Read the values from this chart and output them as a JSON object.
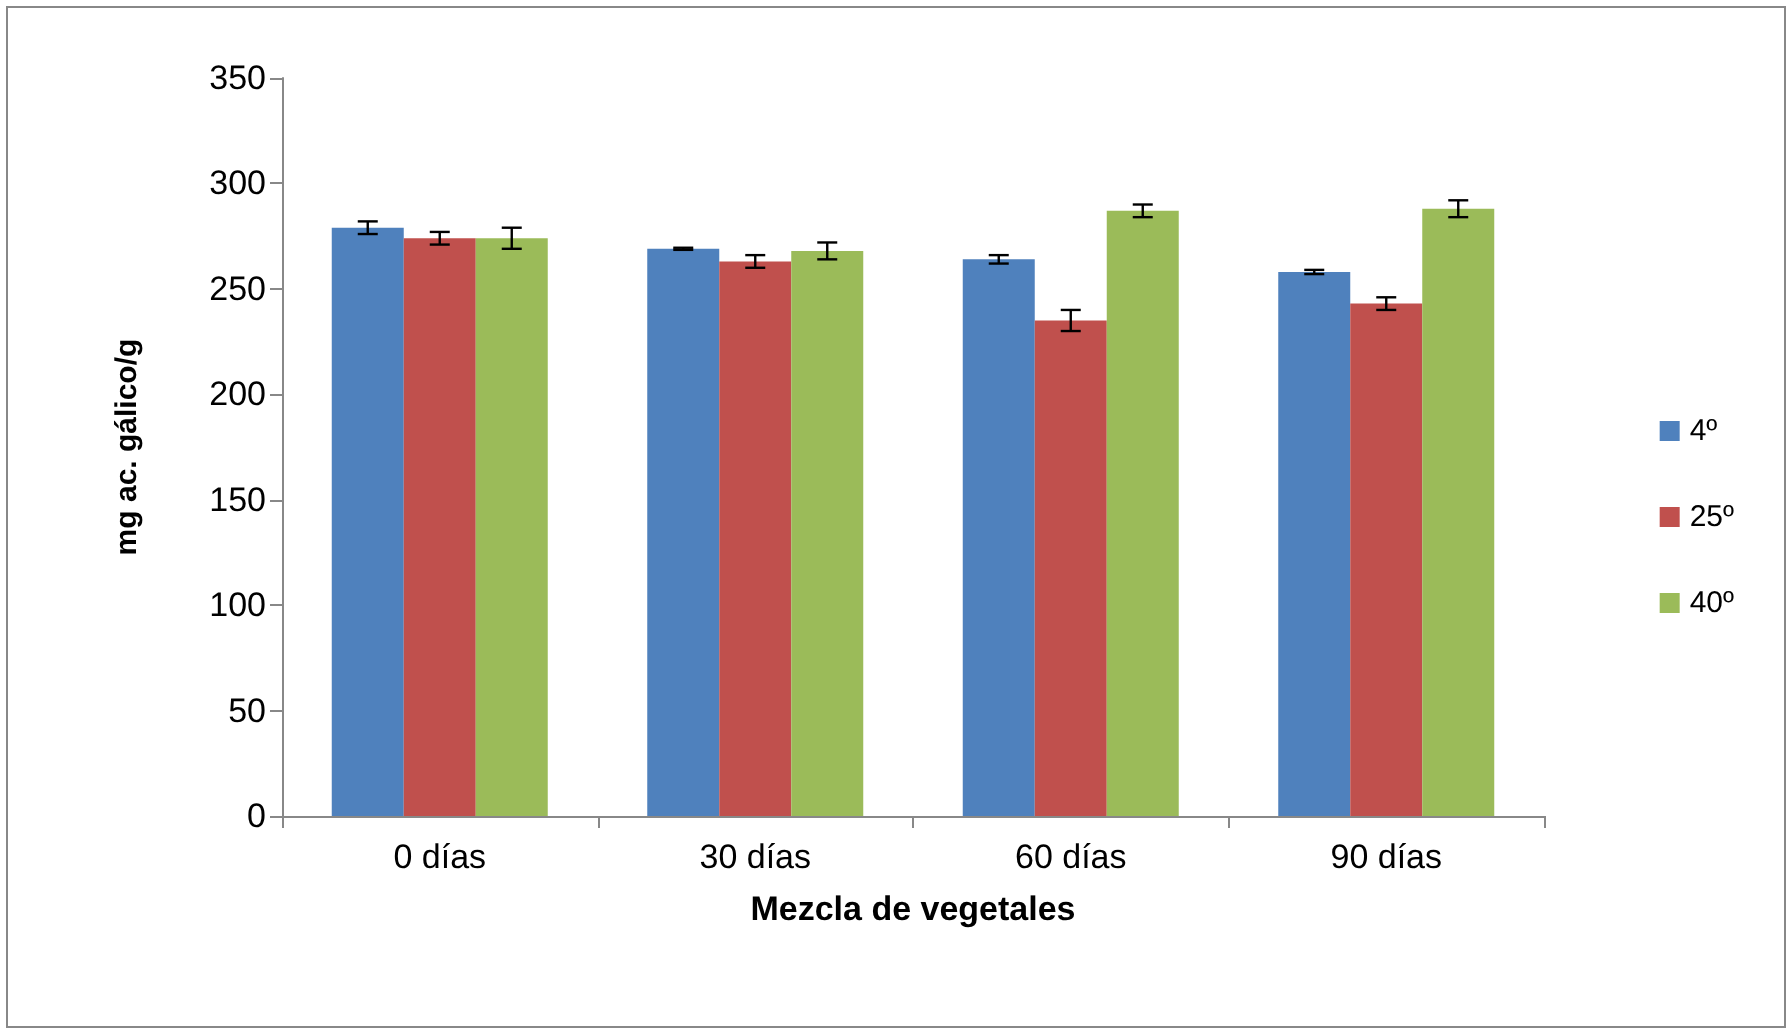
{
  "chart_data": {
    "type": "bar",
    "xlabel": "Mezcla de vegetales",
    "ylabel": "mg ac. gálico/g",
    "categories": [
      "0 días",
      "30 días",
      "60 días",
      "90 días"
    ],
    "series": [
      {
        "name": "4º",
        "color": "#4f81bd",
        "values": [
          279,
          269,
          264,
          258
        ],
        "errors": [
          3,
          0.5,
          2,
          1
        ]
      },
      {
        "name": "25º",
        "color": "#c0504d",
        "values": [
          274,
          263,
          235,
          243
        ],
        "errors": [
          3,
          3,
          5,
          3
        ]
      },
      {
        "name": "40º",
        "color": "#9bbb59",
        "values": [
          274,
          268,
          287,
          288
        ],
        "errors": [
          5,
          4,
          3,
          4
        ]
      }
    ],
    "ylim": [
      0,
      350
    ],
    "yticks": [
      0,
      50,
      100,
      150,
      200,
      250,
      300,
      350
    ],
    "grid": false,
    "legend": "right"
  }
}
